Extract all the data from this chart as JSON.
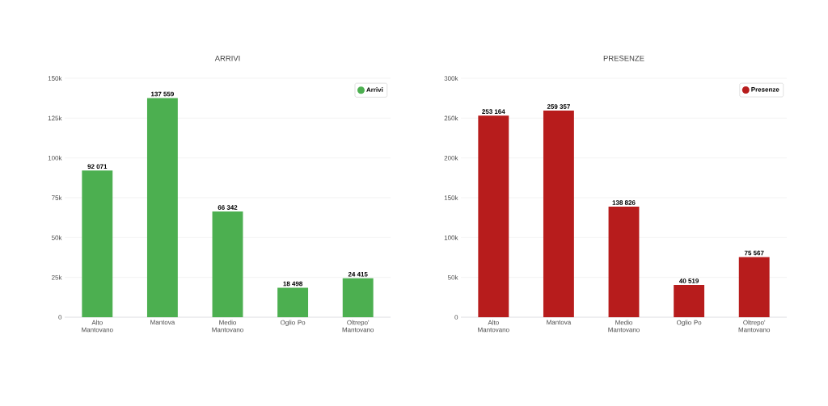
{
  "chart_data": [
    {
      "type": "bar",
      "title": "ARRIVI",
      "categories": [
        "Alto Mantovano",
        "Mantova",
        "Medio Mantovano",
        "Oglio Po",
        "Oltrepo' Mantovano"
      ],
      "series": [
        {
          "name": "Arrivi",
          "color": "#4caf50",
          "values": [
            92071,
            137559,
            66342,
            18498,
            24415
          ],
          "value_labels": [
            "92 071",
            "137 559",
            "66 342",
            "18 498",
            "24 415"
          ]
        }
      ],
      "ylim": [
        0,
        150000
      ],
      "yticks": [
        0,
        {
          "value": 25000,
          "label": "25k"
        },
        {
          "value": 50000,
          "label": "50k"
        },
        {
          "value": 75000,
          "label": "75k"
        },
        {
          "value": 100000,
          "label": "100k"
        },
        {
          "value": 125000,
          "label": "125k"
        },
        {
          "value": 150000,
          "label": "150k"
        }
      ],
      "grid": "y",
      "legend": "top right"
    },
    {
      "type": "bar",
      "title": "PRESENZE",
      "categories": [
        "Alto Mantovano",
        "Mantova",
        "Medio Mantovano",
        "Oglio Po",
        "Oltrepo' Mantovano"
      ],
      "series": [
        {
          "name": "Presenze",
          "color": "#b71c1c",
          "values": [
            253164,
            259357,
            138826,
            40519,
            75567
          ],
          "value_labels": [
            "253 164",
            "259 357",
            "138 826",
            "40 519",
            "75 567"
          ]
        }
      ],
      "ylim": [
        0,
        300000
      ],
      "yticks": [
        0,
        {
          "value": 50000,
          "label": "50k"
        },
        {
          "value": 100000,
          "label": "100k"
        },
        {
          "value": 150000,
          "label": "150k"
        },
        {
          "value": 200000,
          "label": "200k"
        },
        {
          "value": 250000,
          "label": "250k"
        },
        {
          "value": 300000,
          "label": "300k"
        }
      ],
      "grid": "y",
      "legend": "top right"
    }
  ]
}
